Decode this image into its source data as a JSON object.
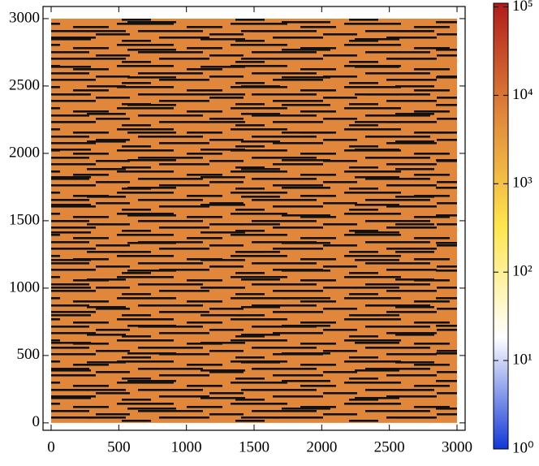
{
  "chart_data": {
    "type": "heatmap",
    "extent": [
      0,
      3000,
      0,
      3000
    ],
    "xlim": [
      -60,
      3060
    ],
    "ylim": [
      -55,
      3090
    ],
    "xticks": [
      0,
      500,
      1000,
      1500,
      2000,
      2500,
      3000
    ],
    "yticks": [
      0,
      500,
      1000,
      1500,
      2000,
      2500,
      3000
    ],
    "field_color": "#e0873c",
    "colorbar": {
      "scale": "log",
      "clim": [
        1,
        110000
      ],
      "colormap": [
        "#1238d6",
        "#ffffff",
        "#ffe54d",
        "#e0873c",
        "#b01d1a"
      ],
      "ticks": [
        {
          "value": 1,
          "label": "10⁰"
        },
        {
          "value": 10,
          "label": "10¹"
        },
        {
          "value": 100,
          "label": "10²"
        },
        {
          "value": 1000,
          "label": "10³"
        },
        {
          "value": 10000,
          "label": "10⁴"
        },
        {
          "value": 100000,
          "label": "10⁵"
        }
      ]
    }
  }
}
